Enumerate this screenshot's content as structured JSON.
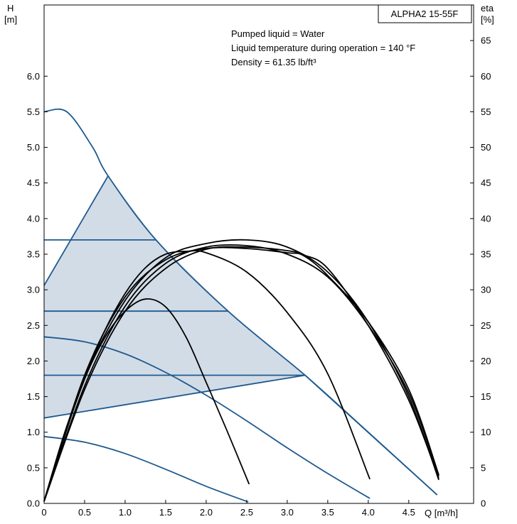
{
  "chart_data": {
    "type": "line",
    "title": "ALPHA2 15-55F",
    "notes": [
      "Pumped liquid = Water",
      "Liquid temperature during operation = 140 °F",
      "Density = 61.35 lb/ft³"
    ],
    "x_axis": {
      "label": "Q [m³/h]",
      "min": 0,
      "max": 5.3,
      "ticks": [
        "0",
        "0.5",
        "1.0",
        "1.5",
        "2.0",
        "2.5",
        "3.0",
        "3.5",
        "4.0",
        "4.5"
      ]
    },
    "y_left": {
      "label_line1": "H",
      "label_line2": "[m]",
      "min": 0,
      "max": 7,
      "ticks": [
        "0.0",
        "0.5",
        "1.0",
        "1.5",
        "2.0",
        "2.5",
        "3.0",
        "3.5",
        "4.0",
        "4.5",
        "5.0",
        "5.5",
        "6.0"
      ]
    },
    "y_right": {
      "label_line1": "eta",
      "label_line2": "[%]",
      "min": 0,
      "max": 70,
      "ticks": [
        "0",
        "5",
        "10",
        "15",
        "20",
        "25",
        "30",
        "35",
        "40",
        "45",
        "50",
        "55",
        "60",
        "65"
      ]
    },
    "grid": false,
    "colors": {
      "head_curve": "#1f5a8f",
      "efficiency_curve": "#000000",
      "region_fill": "#d2dce7"
    },
    "shaded_region": [
      [
        0,
        1.2
      ],
      [
        0,
        3.06
      ],
      [
        0.79,
        4.6
      ],
      [
        1.38,
        3.7
      ],
      [
        2.27,
        2.7
      ],
      [
        3.22,
        1.8
      ]
    ],
    "head_curves": [
      {
        "points": [
          [
            0,
            5.5
          ],
          [
            0.28,
            5.5
          ],
          [
            0.6,
            5.0
          ],
          [
            0.79,
            4.6
          ],
          [
            1.38,
            3.7
          ],
          [
            2.27,
            2.7
          ],
          [
            3.22,
            1.8
          ],
          [
            4.0,
            1.0
          ],
          [
            4.85,
            0.12
          ]
        ]
      },
      {
        "points": [
          [
            0,
            3.06
          ],
          [
            0.79,
            4.6
          ]
        ]
      },
      {
        "points": [
          [
            0,
            3.7
          ],
          [
            1.38,
            3.7
          ]
        ]
      },
      {
        "points": [
          [
            0,
            2.7
          ],
          [
            2.27,
            2.7
          ]
        ]
      },
      {
        "points": [
          [
            0,
            1.8
          ],
          [
            3.22,
            1.8
          ]
        ]
      },
      {
        "points": [
          [
            0,
            1.2
          ],
          [
            3.22,
            1.8
          ],
          [
            4.85,
            0.12
          ]
        ]
      },
      {
        "points": [
          [
            0,
            2.34
          ],
          [
            0.5,
            2.27
          ],
          [
            1.0,
            2.1
          ],
          [
            1.5,
            1.84
          ],
          [
            2.0,
            1.52
          ],
          [
            2.5,
            1.16
          ],
          [
            3.0,
            0.78
          ],
          [
            3.5,
            0.42
          ],
          [
            4.02,
            0.07
          ]
        ]
      },
      {
        "points": [
          [
            0,
            0.94
          ],
          [
            0.5,
            0.86
          ],
          [
            1.0,
            0.7
          ],
          [
            1.5,
            0.48
          ],
          [
            2.0,
            0.24
          ],
          [
            2.52,
            0.02
          ]
        ]
      }
    ],
    "efficiency_curves": [
      {
        "points": [
          [
            0,
            0.3
          ],
          [
            0.25,
            9.8
          ],
          [
            0.5,
            17.5
          ],
          [
            0.75,
            23.3
          ],
          [
            1.0,
            27.0
          ],
          [
            1.25,
            28.7
          ],
          [
            1.5,
            27.6
          ],
          [
            1.75,
            23.4
          ],
          [
            2.0,
            17.0
          ],
          [
            2.25,
            10.4
          ],
          [
            2.53,
            2.7
          ]
        ]
      },
      {
        "points": [
          [
            0,
            0.3
          ],
          [
            0.25,
            9.5
          ],
          [
            0.5,
            17.5
          ],
          [
            0.75,
            24.3
          ],
          [
            1.0,
            29.5
          ],
          [
            1.25,
            33.1
          ],
          [
            1.5,
            35.0
          ],
          [
            1.75,
            35.4
          ],
          [
            2.0,
            35.2
          ],
          [
            2.5,
            32.5
          ],
          [
            3.0,
            26.8
          ],
          [
            3.5,
            18.2
          ],
          [
            4.02,
            3.4
          ]
        ]
      },
      {
        "points": [
          [
            0,
            0.3
          ],
          [
            0.5,
            16.0
          ],
          [
            1.0,
            27.0
          ],
          [
            1.5,
            33.0
          ],
          [
            2.0,
            35.7
          ],
          [
            2.5,
            36.0
          ],
          [
            3.0,
            35.5
          ],
          [
            3.2,
            34.9
          ],
          [
            3.5,
            33.0
          ],
          [
            4.0,
            25.0
          ],
          [
            4.5,
            14.5
          ],
          [
            4.87,
            3.5
          ]
        ]
      },
      {
        "points": [
          [
            0,
            0.3
          ],
          [
            0.5,
            17.5
          ],
          [
            1.0,
            28.5
          ],
          [
            1.5,
            34.5
          ],
          [
            2.0,
            36.5
          ],
          [
            2.5,
            37.0
          ],
          [
            3.0,
            36.0
          ],
          [
            3.5,
            32.5
          ],
          [
            4.0,
            25.5
          ],
          [
            4.5,
            15.0
          ],
          [
            4.87,
            3.3
          ]
        ]
      },
      {
        "points": [
          [
            0,
            0.3
          ],
          [
            0.5,
            16.5
          ],
          [
            1.0,
            27.7
          ],
          [
            1.5,
            33.7
          ],
          [
            2.0,
            36.0
          ],
          [
            2.5,
            36.2
          ],
          [
            3.0,
            35.0
          ],
          [
            3.5,
            31.8
          ],
          [
            4.0,
            25.0
          ],
          [
            4.5,
            15.5
          ],
          [
            4.87,
            3.8
          ]
        ]
      },
      {
        "points": [
          [
            0,
            0.3
          ],
          [
            0.5,
            18.0
          ],
          [
            1.0,
            29.0
          ],
          [
            1.5,
            34.2
          ],
          [
            2.0,
            35.8
          ],
          [
            2.5,
            35.8
          ],
          [
            3.0,
            35.2
          ],
          [
            3.2,
            34.8
          ],
          [
            3.5,
            32.0
          ],
          [
            4.0,
            25.5
          ],
          [
            4.5,
            16.0
          ],
          [
            4.87,
            4.0
          ]
        ]
      }
    ]
  }
}
